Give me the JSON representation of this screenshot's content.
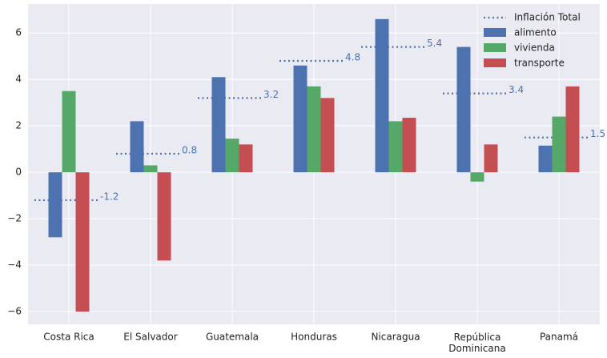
{
  "chart_data": {
    "type": "bar",
    "categories": [
      "Costa Rica",
      "El Salvador",
      "Guatemala",
      "Honduras",
      "Nicaragua",
      "República Dominicana",
      "Panamá"
    ],
    "series": [
      {
        "name": "Inflación Total",
        "color": "#4c72b0",
        "kind": "dotted-line",
        "data_labels": true,
        "values": [
          -1.2,
          0.8,
          3.2,
          4.8,
          5.4,
          3.4,
          1.5
        ]
      },
      {
        "name": "alimento",
        "color": "#4c72b0",
        "values": [
          -2.8,
          2.2,
          4.1,
          4.6,
          6.6,
          5.4,
          1.15
        ]
      },
      {
        "name": "vivienda",
        "color": "#55a868",
        "values": [
          3.5,
          0.3,
          1.45,
          3.7,
          2.2,
          -0.4,
          2.4
        ]
      },
      {
        "name": "transporte",
        "color": "#c44e52",
        "values": [
          -6.0,
          -3.8,
          1.2,
          3.2,
          2.35,
          1.2,
          3.7
        ]
      }
    ],
    "ylim": [
      -6.55,
      7.25
    ],
    "yticks": [
      -6,
      -4,
      -2,
      0,
      2,
      4,
      6
    ],
    "grid": true,
    "legend": "upper-right",
    "background": "#eaeaf2"
  }
}
